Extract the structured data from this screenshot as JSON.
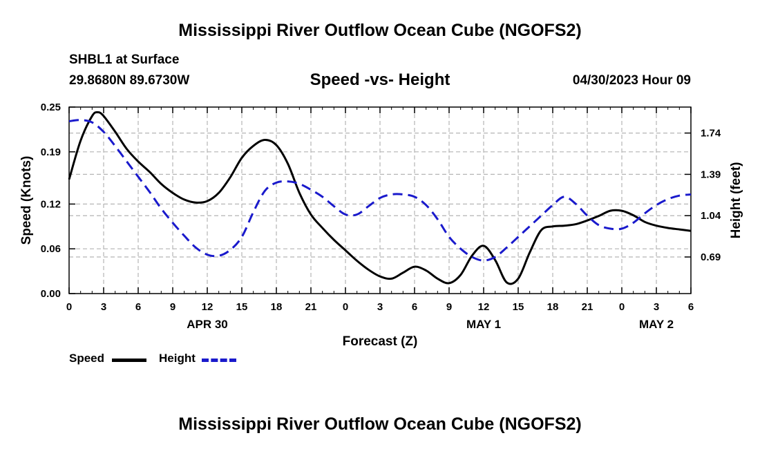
{
  "page_title": "Mississippi River Outflow Ocean Cube (NGOFS2)",
  "footer_title": "Mississippi River Outflow Ocean Cube (NGOFS2)",
  "station": {
    "name": "SHBL1 at Surface",
    "coords": "29.8680N  89.6730W"
  },
  "run_time": "04/30/2023 Hour 09",
  "colors": {
    "speed": "#000000",
    "height": "#1a1acc",
    "grid": "#b4b4b4"
  },
  "chart_data": {
    "type": "line",
    "title": "Speed -vs- Height",
    "xlabel": "Forecast (Z)",
    "ylabel": "Speed (Knots)",
    "y2label": "Height (feet)",
    "xlim": [
      0,
      54
    ],
    "ylim": [
      0,
      0.25
    ],
    "y2lim": [
      0.38,
      1.96
    ],
    "x_tick_values": [
      0,
      3,
      6,
      9,
      12,
      15,
      18,
      21,
      24,
      27,
      30,
      33,
      36,
      39,
      42,
      45,
      48,
      51,
      54
    ],
    "x_tick_labels": [
      "0",
      "3",
      "6",
      "9",
      "12",
      "15",
      "18",
      "21",
      "0",
      "3",
      "6",
      "9",
      "12",
      "15",
      "18",
      "21",
      "0",
      "3",
      "6"
    ],
    "y_ticks": [
      0,
      0.06,
      0.12,
      0.19,
      0.25
    ],
    "y_tick_labels": [
      "0.00",
      "0.06",
      "0.12",
      "0.19",
      "0.25"
    ],
    "y2_ticks": [
      0.69,
      1.04,
      1.39,
      1.74
    ],
    "y2_tick_labels": [
      "0.69",
      "1.04",
      "1.39",
      "1.74"
    ],
    "date_labels": [
      {
        "x": 12,
        "label": "APR 30"
      },
      {
        "x": 36,
        "label": "MAY 1"
      },
      {
        "x": 51,
        "label": "MAY 2"
      }
    ],
    "series": [
      {
        "name": "Speed",
        "axis": "left",
        "style": "solid",
        "x": [
          0,
          1,
          2,
          2.5,
          3,
          4,
          5,
          6,
          7,
          8,
          9,
          10,
          11,
          12,
          13,
          14,
          15,
          16,
          17,
          18,
          19,
          20,
          21,
          22,
          23,
          24,
          25,
          26,
          27,
          28,
          29,
          30,
          31,
          32,
          33,
          34,
          35,
          36,
          37,
          38,
          39,
          40,
          41,
          42,
          43,
          44,
          45,
          46,
          47,
          48,
          49,
          50,
          51,
          52,
          53,
          54
        ],
        "values": [
          0.153,
          0.205,
          0.238,
          0.243,
          0.238,
          0.217,
          0.194,
          0.177,
          0.163,
          0.147,
          0.135,
          0.126,
          0.122,
          0.124,
          0.135,
          0.156,
          0.182,
          0.198,
          0.206,
          0.199,
          0.174,
          0.135,
          0.106,
          0.088,
          0.072,
          0.058,
          0.044,
          0.032,
          0.023,
          0.02,
          0.028,
          0.036,
          0.031,
          0.02,
          0.014,
          0.025,
          0.051,
          0.064,
          0.045,
          0.015,
          0.02,
          0.055,
          0.085,
          0.09,
          0.091,
          0.093,
          0.098,
          0.104,
          0.111,
          0.111,
          0.105,
          0.096,
          0.091,
          0.088,
          0.086,
          0.084
        ]
      },
      {
        "name": "Height",
        "axis": "right",
        "style": "dashed",
        "x": [
          0,
          1,
          2,
          3,
          4,
          5,
          6,
          7,
          8,
          9,
          10,
          11,
          12,
          13,
          14,
          15,
          16,
          17,
          18,
          19,
          20,
          21,
          22,
          23,
          24,
          25,
          26,
          27,
          28,
          29,
          30,
          31,
          32,
          33,
          34,
          35,
          36,
          37,
          38,
          39,
          40,
          41,
          42,
          43,
          44,
          45,
          46,
          47,
          48,
          49,
          50,
          51,
          52,
          53,
          54
        ],
        "values": [
          1.84,
          1.85,
          1.83,
          1.75,
          1.63,
          1.5,
          1.37,
          1.24,
          1.1,
          0.98,
          0.87,
          0.77,
          0.71,
          0.7,
          0.75,
          0.86,
          1.07,
          1.25,
          1.32,
          1.33,
          1.31,
          1.26,
          1.2,
          1.12,
          1.05,
          1.05,
          1.12,
          1.19,
          1.22,
          1.22,
          1.2,
          1.13,
          1.01,
          0.86,
          0.76,
          0.69,
          0.66,
          0.69,
          0.77,
          0.86,
          0.95,
          1.04,
          1.13,
          1.2,
          1.14,
          1.04,
          0.96,
          0.93,
          0.93,
          0.98,
          1.06,
          1.13,
          1.18,
          1.21,
          1.22
        ]
      }
    ],
    "legend": [
      {
        "label": "Speed",
        "style": "solid"
      },
      {
        "label": "Height",
        "style": "dashed"
      }
    ]
  }
}
